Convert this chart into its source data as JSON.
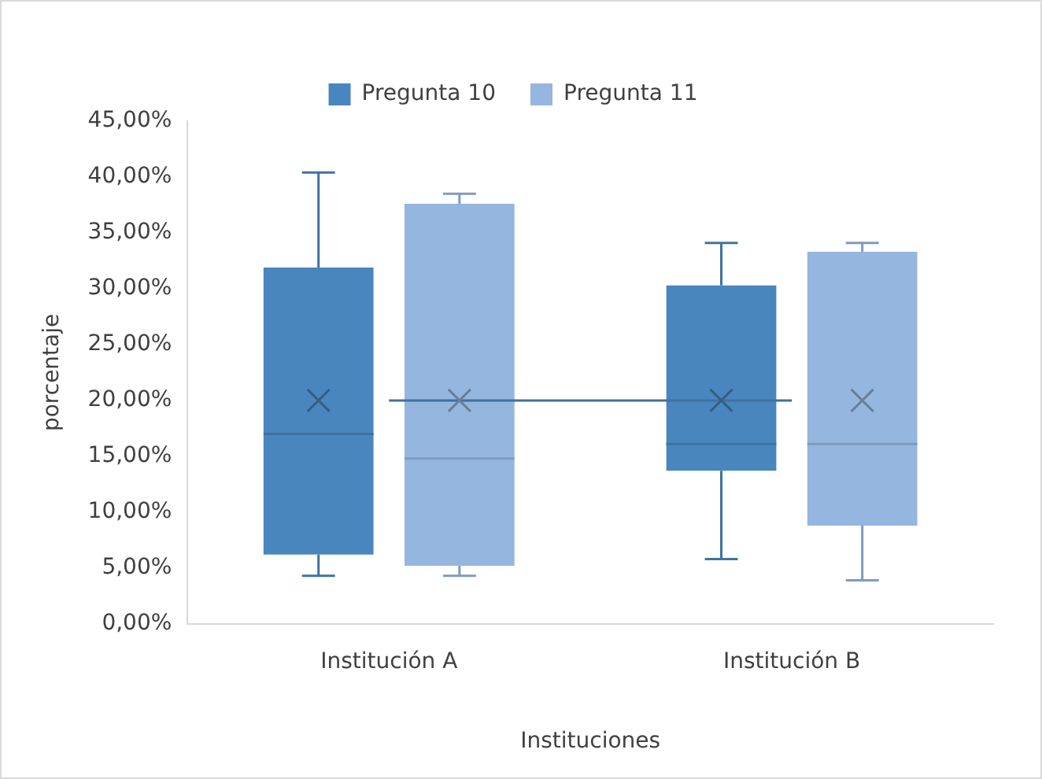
{
  "chart_data": {
    "type": "box",
    "xlabel": "Instituciones",
    "ylabel": "porcentaje",
    "categories": [
      "Institución A",
      "Institución B"
    ],
    "series": [
      {
        "name": "Pregunta 10",
        "color": "#4a86be",
        "boxes": [
          {
            "low": 4.3,
            "q1": 6.2,
            "median": 17.0,
            "q3": 31.9,
            "high": 40.4,
            "mean": 20.0
          },
          {
            "low": 5.8,
            "q1": 13.7,
            "median": 16.1,
            "q3": 30.3,
            "high": 34.1,
            "mean": 20.0
          }
        ]
      },
      {
        "name": "Pregunta 11",
        "color": "#95b6df",
        "boxes": [
          {
            "low": 4.3,
            "q1": 5.2,
            "median": 14.8,
            "q3": 37.6,
            "high": 38.5,
            "mean": 20.0
          },
          {
            "low": 3.9,
            "q1": 8.8,
            "median": 16.1,
            "q3": 33.3,
            "high": 34.1,
            "mean": 20.0
          }
        ]
      },
      {
        "type": "line",
        "color": "#41719c",
        "values": [
          20.0,
          20.0
        ]
      }
    ],
    "ylim": [
      0,
      45
    ],
    "yticks": [
      {
        "value": 0,
        "label": "0,00%"
      },
      {
        "value": 5,
        "label": "5,00%"
      },
      {
        "value": 10,
        "label": "10,00%"
      },
      {
        "value": 15,
        "label": "15,00%"
      },
      {
        "value": 20,
        "label": "20,00%"
      },
      {
        "value": 25,
        "label": "25,00%"
      },
      {
        "value": 30,
        "label": "30,00%"
      },
      {
        "value": 35,
        "label": "35,00%"
      },
      {
        "value": 40,
        "label": "40,00%"
      },
      {
        "value": 45,
        "label": "45,00%"
      }
    ],
    "grid": false,
    "legend": "top",
    "marker": "none"
  }
}
